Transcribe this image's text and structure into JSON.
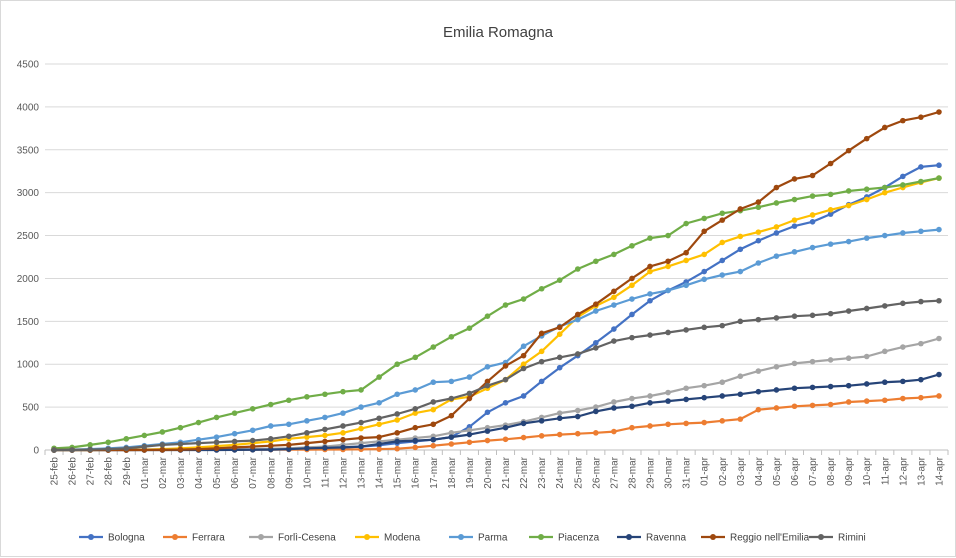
{
  "chart_data": {
    "type": "line",
    "title": "Emilia Romagna",
    "xlabel": "",
    "ylabel": "",
    "ylim": [
      0,
      4500
    ],
    "yticks": [
      0,
      500,
      1000,
      1500,
      2000,
      2500,
      3000,
      3500,
      4000,
      4500
    ],
    "grid": true,
    "legend": "bottom",
    "categories": [
      "25-feb",
      "26-feb",
      "27-feb",
      "28-feb",
      "29-feb",
      "01-mar",
      "02-mar",
      "03-mar",
      "04-mar",
      "05-mar",
      "06-mar",
      "07-mar",
      "08-mar",
      "09-mar",
      "10-mar",
      "11-mar",
      "12-mar",
      "13-mar",
      "14-mar",
      "15-mar",
      "16-mar",
      "17-mar",
      "18-mar",
      "19-mar",
      "20-mar",
      "21-mar",
      "22-mar",
      "23-mar",
      "24-mar",
      "25-mar",
      "26-mar",
      "27-mar",
      "28-mar",
      "29-mar",
      "30-mar",
      "31-mar",
      "01-apr",
      "02-apr",
      "03-apr",
      "04-apr",
      "05-apr",
      "06-apr",
      "07-apr",
      "08-apr",
      "09-apr",
      "10-apr",
      "11-apr",
      "12-apr",
      "13-apr",
      "14-apr"
    ],
    "series": [
      {
        "name": "Bologna",
        "color": "#4472c4",
        "values": [
          0,
          0,
          0,
          0,
          0,
          1,
          2,
          3,
          4,
          6,
          8,
          10,
          12,
          14,
          18,
          22,
          30,
          40,
          55,
          80,
          100,
          120,
          150,
          270,
          440,
          550,
          630,
          800,
          960,
          1100,
          1250,
          1410,
          1580,
          1740,
          1860,
          1960,
          2080,
          2210,
          2340,
          2440,
          2530,
          2610,
          2660,
          2750,
          2860,
          2950,
          3060,
          3190,
          3300,
          3320
        ]
      },
      {
        "name": "Ferrara",
        "color": "#ed7d31",
        "values": [
          0,
          0,
          0,
          0,
          0,
          0,
          0,
          1,
          1,
          2,
          2,
          3,
          4,
          5,
          5,
          6,
          6,
          8,
          10,
          15,
          30,
          50,
          70,
          90,
          110,
          125,
          145,
          165,
          180,
          190,
          200,
          215,
          260,
          280,
          300,
          310,
          320,
          340,
          360,
          470,
          490,
          510,
          520,
          530,
          560,
          570,
          580,
          600,
          610,
          630
        ]
      },
      {
        "name": "Forlì-Cesena",
        "color": "#a5a5a5",
        "values": [
          0,
          0,
          0,
          0,
          0,
          0,
          1,
          2,
          3,
          5,
          8,
          10,
          15,
          20,
          30,
          40,
          60,
          80,
          100,
          120,
          140,
          160,
          200,
          230,
          260,
          290,
          330,
          380,
          430,
          460,
          500,
          560,
          600,
          630,
          670,
          720,
          750,
          790,
          860,
          920,
          970,
          1010,
          1030,
          1050,
          1070,
          1090,
          1150,
          1200,
          1240,
          1300
        ]
      },
      {
        "name": "Modena",
        "color": "#ffc000",
        "values": [
          0,
          0,
          0,
          1,
          2,
          5,
          10,
          20,
          30,
          45,
          60,
          80,
          100,
          130,
          150,
          170,
          200,
          250,
          300,
          350,
          430,
          470,
          590,
          620,
          720,
          820,
          1000,
          1150,
          1350,
          1550,
          1680,
          1780,
          1920,
          2080,
          2140,
          2210,
          2280,
          2420,
          2490,
          2540,
          2600,
          2680,
          2740,
          2800,
          2850,
          2920,
          3000,
          3060,
          3120,
          3170
        ]
      },
      {
        "name": "Parma",
        "color": "#5b9bd5",
        "values": [
          0,
          5,
          10,
          20,
          30,
          50,
          70,
          90,
          120,
          150,
          190,
          230,
          280,
          300,
          340,
          380,
          430,
          500,
          550,
          650,
          700,
          790,
          800,
          850,
          970,
          1020,
          1210,
          1330,
          1440,
          1520,
          1620,
          1690,
          1760,
          1820,
          1860,
          1920,
          1990,
          2040,
          2080,
          2180,
          2260,
          2310,
          2360,
          2400,
          2430,
          2470,
          2500,
          2530,
          2550,
          2570
        ]
      },
      {
        "name": "Piacenza",
        "color": "#70ad47",
        "values": [
          20,
          30,
          60,
          90,
          130,
          170,
          210,
          260,
          320,
          380,
          430,
          480,
          530,
          580,
          620,
          650,
          680,
          700,
          850,
          1000,
          1080,
          1200,
          1320,
          1420,
          1560,
          1690,
          1760,
          1880,
          1980,
          2110,
          2200,
          2280,
          2380,
          2470,
          2500,
          2640,
          2700,
          2760,
          2790,
          2830,
          2880,
          2920,
          2960,
          2980,
          3020,
          3040,
          3060,
          3090,
          3130,
          3170
        ]
      },
      {
        "name": "Ravenna",
        "color": "#264478",
        "values": [
          0,
          0,
          0,
          0,
          0,
          0,
          0,
          0,
          0,
          0,
          1,
          2,
          5,
          10,
          20,
          25,
          30,
          40,
          70,
          100,
          110,
          120,
          150,
          180,
          220,
          260,
          310,
          340,
          370,
          390,
          450,
          490,
          510,
          550,
          570,
          590,
          610,
          630,
          650,
          680,
          700,
          720,
          730,
          740,
          750,
          770,
          790,
          800,
          820,
          880
        ]
      },
      {
        "name": "Reggio nell'Emilia",
        "color": "#9e480e",
        "values": [
          0,
          0,
          0,
          0,
          0,
          1,
          2,
          5,
          10,
          20,
          30,
          40,
          50,
          60,
          80,
          100,
          120,
          140,
          150,
          200,
          260,
          300,
          400,
          600,
          800,
          980,
          1100,
          1360,
          1430,
          1580,
          1700,
          1850,
          2000,
          2140,
          2200,
          2300,
          2550,
          2680,
          2810,
          2890,
          3060,
          3160,
          3200,
          3340,
          3490,
          3630,
          3760,
          3840,
          3880,
          3940
        ]
      },
      {
        "name": "Rimini",
        "color": "#636363",
        "values": [
          0,
          0,
          5,
          10,
          20,
          40,
          60,
          70,
          80,
          90,
          100,
          110,
          130,
          160,
          200,
          240,
          280,
          320,
          370,
          420,
          480,
          560,
          600,
          660,
          750,
          820,
          950,
          1030,
          1080,
          1120,
          1190,
          1270,
          1310,
          1340,
          1370,
          1400,
          1430,
          1450,
          1500,
          1520,
          1540,
          1560,
          1570,
          1590,
          1620,
          1650,
          1680,
          1710,
          1730,
          1740
        ]
      }
    ]
  }
}
